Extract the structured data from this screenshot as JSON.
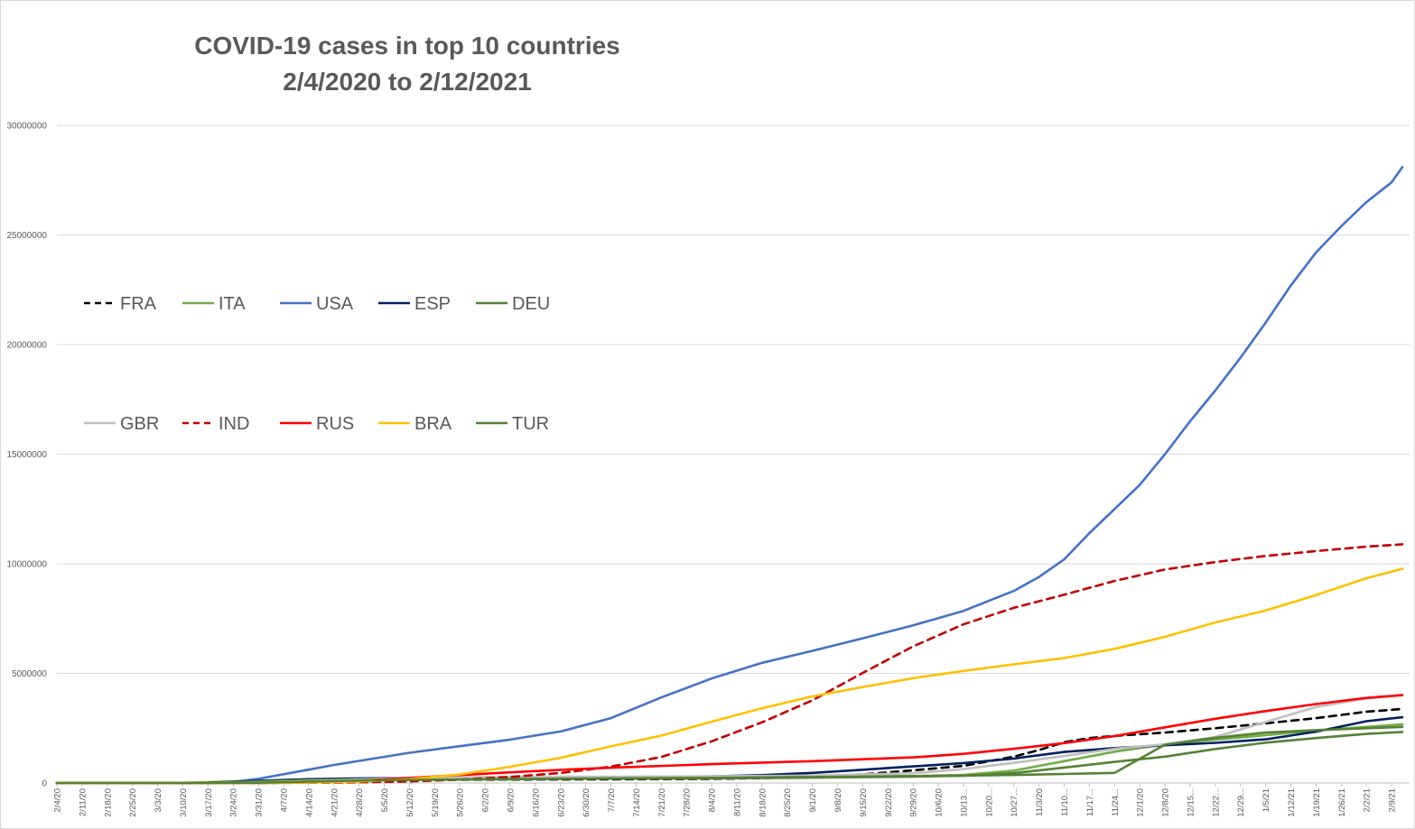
{
  "chart_data": {
    "type": "line",
    "title": "COVID-19 cases in top 10 countries",
    "subtitle": "2/4/2020 to 2/12/2021",
    "xlabel": "",
    "ylabel": "",
    "ylim": [
      0,
      30000000
    ],
    "y_ticks": [
      "0",
      "5000000",
      "10000000",
      "15000000",
      "20000000",
      "25000000",
      "30000000"
    ],
    "x_tick_labels": [
      "2/4/20",
      "2/11/20",
      "2/18/20",
      "2/25/20",
      "3/3/20",
      "3/10/20",
      "3/17/20",
      "3/24/20",
      "3/31/20",
      "4/7/20",
      "4/14/20",
      "4/21/20",
      "4/28/20",
      "5/5/20",
      "5/12/20",
      "5/19/20",
      "5/26/20",
      "6/2/20",
      "6/9/20",
      "6/16/20",
      "6/23/20",
      "6/30/20",
      "7/7/20",
      "7/14/20",
      "7/21/20",
      "7/28/20",
      "8/4/20",
      "8/11/20",
      "8/18/20",
      "8/25/20",
      "9/1/20",
      "9/8/20",
      "9/15/20",
      "9/22/20",
      "9/29/20",
      "10/6/20",
      "10/13...",
      "10/20...",
      "10/27...",
      "11/3/20",
      "11/10...",
      "11/17...",
      "11/24...",
      "12/1/20",
      "12/8/20",
      "12/15...",
      "12/22...",
      "12/29...",
      "1/5/21",
      "1/12/21",
      "1/19/21",
      "1/26/21",
      "2/2/21",
      "2/9/21"
    ],
    "x_last": "2/12/21",
    "grid": true,
    "legend_position": "left",
    "series": [
      {
        "name": "FRA",
        "color": "#000000",
        "dash": true,
        "points": [
          [
            "2/4/20",
            0
          ],
          [
            "3/3/20",
            200
          ],
          [
            "3/17/20",
            7700
          ],
          [
            "3/31/20",
            52000
          ],
          [
            "4/14/20",
            104000
          ],
          [
            "4/28/20",
            129000
          ],
          [
            "5/12/20",
            140000
          ],
          [
            "6/9/20",
            155000
          ],
          [
            "7/7/20",
            168000
          ],
          [
            "8/4/20",
            190000
          ],
          [
            "8/18/20",
            221000
          ],
          [
            "9/1/20",
            286000
          ],
          [
            "9/15/20",
            396000
          ],
          [
            "9/29/20",
            578000
          ],
          [
            "10/13/20",
            780000
          ],
          [
            "10/27/20",
            1200000
          ],
          [
            "11/3/20",
            1500000
          ],
          [
            "11/10/20",
            1860000
          ],
          [
            "11/17/20",
            2050000
          ],
          [
            "11/24/20",
            2150000
          ],
          [
            "12/8/20",
            2300000
          ],
          [
            "12/22/20",
            2500000
          ],
          [
            "1/5/21",
            2720000
          ],
          [
            "1/19/21",
            2960000
          ],
          [
            "2/2/21",
            3250000
          ],
          [
            "2/12/21",
            3380000
          ]
        ]
      },
      {
        "name": "ITA",
        "color": "#70ad47",
        "dash": false,
        "points": [
          [
            "2/4/20",
            0
          ],
          [
            "2/25/20",
            300
          ],
          [
            "3/10/20",
            10000
          ],
          [
            "3/24/20",
            69000
          ],
          [
            "4/7/20",
            135000
          ],
          [
            "4/21/20",
            183000
          ],
          [
            "5/5/20",
            213000
          ],
          [
            "6/2/20",
            233000
          ],
          [
            "7/7/20",
            242000
          ],
          [
            "8/4/20",
            248000
          ],
          [
            "9/1/20",
            270000
          ],
          [
            "9/29/20",
            314000
          ],
          [
            "10/13/20",
            365000
          ],
          [
            "10/27/20",
            565000
          ],
          [
            "11/10/20",
            996000
          ],
          [
            "11/24/20",
            1430000
          ],
          [
            "12/8/20",
            1760000
          ],
          [
            "12/22/20",
            1980000
          ],
          [
            "1/5/21",
            2180000
          ],
          [
            "1/19/21",
            2400000
          ],
          [
            "2/2/21",
            2560000
          ],
          [
            "2/12/21",
            2680000
          ]
        ]
      },
      {
        "name": "USA",
        "color": "#4472c4",
        "dash": false,
        "points": [
          [
            "2/4/20",
            0
          ],
          [
            "3/10/20",
            1000
          ],
          [
            "3/17/20",
            6400
          ],
          [
            "3/24/20",
            54000
          ],
          [
            "3/31/20",
            188000
          ],
          [
            "4/7/20",
            400000
          ],
          [
            "4/14/20",
            608000
          ],
          [
            "4/21/20",
            825000
          ],
          [
            "4/28/20",
            1010000
          ],
          [
            "5/12/20",
            1380000
          ],
          [
            "5/26/20",
            1680000
          ],
          [
            "6/9/20",
            1980000
          ],
          [
            "6/23/20",
            2350000
          ],
          [
            "7/7/20",
            2960000
          ],
          [
            "7/21/20",
            3900000
          ],
          [
            "8/4/20",
            4770000
          ],
          [
            "8/18/20",
            5480000
          ],
          [
            "9/1/20",
            6030000
          ],
          [
            "9/15/20",
            6600000
          ],
          [
            "9/29/20",
            7190000
          ],
          [
            "10/13/20",
            7850000
          ],
          [
            "10/27/20",
            8760000
          ],
          [
            "11/3/20",
            9400000
          ],
          [
            "11/10/20",
            10200000
          ],
          [
            "11/17/20",
            11400000
          ],
          [
            "11/24/20",
            12500000
          ],
          [
            "12/1/20",
            13600000
          ],
          [
            "12/8/20",
            15000000
          ],
          [
            "12/15/20",
            16500000
          ],
          [
            "12/22/20",
            17900000
          ],
          [
            "12/29/20",
            19400000
          ],
          [
            "1/5/21",
            21000000
          ],
          [
            "1/12/21",
            22700000
          ],
          [
            "1/19/21",
            24200000
          ],
          [
            "1/26/21",
            25400000
          ],
          [
            "2/2/21",
            26500000
          ],
          [
            "2/9/21",
            27400000
          ],
          [
            "2/12/21",
            28100000
          ]
        ]
      },
      {
        "name": "ESP",
        "color": "#002060",
        "dash": false,
        "points": [
          [
            "2/4/20",
            0
          ],
          [
            "3/3/20",
            170
          ],
          [
            "3/17/20",
            11700
          ],
          [
            "3/31/20",
            94000
          ],
          [
            "4/14/20",
            172000
          ],
          [
            "4/28/20",
            210000
          ],
          [
            "5/12/20",
            228000
          ],
          [
            "6/9/20",
            242000
          ],
          [
            "7/7/20",
            252000
          ],
          [
            "8/4/20",
            302000
          ],
          [
            "8/18/20",
            360000
          ],
          [
            "9/1/20",
            462000
          ],
          [
            "9/15/20",
            604000
          ],
          [
            "9/29/20",
            758000
          ],
          [
            "10/13/20",
            908000
          ],
          [
            "10/27/20",
            1116000
          ],
          [
            "11/10/20",
            1417000
          ],
          [
            "11/24/20",
            1594000
          ],
          [
            "12/8/20",
            1720000
          ],
          [
            "12/22/20",
            1830000
          ],
          [
            "1/5/21",
            1990000
          ],
          [
            "1/19/21",
            2340000
          ],
          [
            "2/2/21",
            2820000
          ],
          [
            "2/12/21",
            3000000
          ]
        ]
      },
      {
        "name": "DEU",
        "color": "#548235",
        "dash": false,
        "points": [
          [
            "2/4/20",
            12
          ],
          [
            "3/3/20",
            200
          ],
          [
            "3/17/20",
            9300
          ],
          [
            "3/31/20",
            71800
          ],
          [
            "4/14/20",
            131000
          ],
          [
            "4/28/20",
            159000
          ],
          [
            "5/12/20",
            172000
          ],
          [
            "6/9/20",
            186000
          ],
          [
            "7/7/20",
            197000
          ],
          [
            "8/4/20",
            212000
          ],
          [
            "9/1/20",
            244000
          ],
          [
            "9/29/20",
            292000
          ],
          [
            "10/13/20",
            334000
          ],
          [
            "10/27/20",
            449000
          ],
          [
            "11/10/20",
            705000
          ],
          [
            "11/24/20",
            961000
          ],
          [
            "12/8/20",
            1200000
          ],
          [
            "12/22/20",
            1550000
          ],
          [
            "1/5/21",
            1840000
          ],
          [
            "1/19/21",
            2050000
          ],
          [
            "2/2/21",
            2240000
          ],
          [
            "2/12/21",
            2330000
          ]
        ]
      },
      {
        "name": "GBR",
        "color": "#bfbfbf",
        "dash": false,
        "points": [
          [
            "2/4/20",
            2
          ],
          [
            "3/3/20",
            50
          ],
          [
            "3/17/20",
            2000
          ],
          [
            "3/31/20",
            25000
          ],
          [
            "4/14/20",
            94000
          ],
          [
            "4/28/20",
            162000
          ],
          [
            "5/12/20",
            227000
          ],
          [
            "6/9/20",
            289000
          ],
          [
            "7/7/20",
            286000
          ],
          [
            "8/4/20",
            306000
          ],
          [
            "9/1/20",
            339000
          ],
          [
            "9/29/20",
            446000
          ],
          [
            "10/13/20",
            634000
          ],
          [
            "10/27/20",
            918000
          ],
          [
            "11/10/20",
            1230000
          ],
          [
            "11/24/20",
            1560000
          ],
          [
            "12/8/20",
            1760000
          ],
          [
            "12/22/20",
            2100000
          ],
          [
            "1/5/21",
            2780000
          ],
          [
            "1/19/21",
            3470000
          ],
          [
            "2/2/21",
            3860000
          ],
          [
            "2/12/21",
            4010000
          ]
        ]
      },
      {
        "name": "IND",
        "color": "#c00000",
        "dash": true,
        "points": [
          [
            "2/4/20",
            3
          ],
          [
            "3/3/20",
            5
          ],
          [
            "3/17/20",
            140
          ],
          [
            "3/31/20",
            1400
          ],
          [
            "4/14/20",
            11000
          ],
          [
            "4/28/20",
            31000
          ],
          [
            "5/12/20",
            74000
          ],
          [
            "5/26/20",
            151000
          ],
          [
            "6/9/20",
            276000
          ],
          [
            "6/23/20",
            456000
          ],
          [
            "7/7/20",
            743000
          ],
          [
            "7/21/20",
            1190000
          ],
          [
            "8/4/20",
            1900000
          ],
          [
            "8/18/20",
            2770000
          ],
          [
            "9/1/20",
            3770000
          ],
          [
            "9/15/20",
            5020000
          ],
          [
            "9/29/20",
            6230000
          ],
          [
            "10/13/20",
            7240000
          ],
          [
            "10/27/20",
            7990000
          ],
          [
            "11/10/20",
            8590000
          ],
          [
            "11/24/20",
            9220000
          ],
          [
            "12/8/20",
            9740000
          ],
          [
            "12/22/20",
            10080000
          ],
          [
            "1/5/21",
            10360000
          ],
          [
            "1/19/21",
            10580000
          ],
          [
            "2/2/21",
            10780000
          ],
          [
            "2/12/21",
            10890000
          ]
        ]
      },
      {
        "name": "RUS",
        "color": "#ff0000",
        "dash": false,
        "points": [
          [
            "2/4/20",
            2
          ],
          [
            "3/3/20",
            3
          ],
          [
            "3/17/20",
            114
          ],
          [
            "3/31/20",
            2300
          ],
          [
            "4/14/20",
            21000
          ],
          [
            "4/28/20",
            93000
          ],
          [
            "5/12/20",
            232000
          ],
          [
            "5/26/20",
            362000
          ],
          [
            "6/9/20",
            485000
          ],
          [
            "6/23/20",
            599000
          ],
          [
            "7/7/20",
            694000
          ],
          [
            "8/4/20",
            861000
          ],
          [
            "9/1/20",
            997000
          ],
          [
            "9/29/20",
            1170000
          ],
          [
            "10/13/20",
            1330000
          ],
          [
            "10/27/20",
            1560000
          ],
          [
            "11/10/20",
            1820000
          ],
          [
            "11/24/20",
            2140000
          ],
          [
            "12/8/20",
            2540000
          ],
          [
            "12/22/20",
            2930000
          ],
          [
            "1/5/21",
            3280000
          ],
          [
            "1/19/21",
            3600000
          ],
          [
            "2/2/21",
            3880000
          ],
          [
            "2/12/21",
            4010000
          ]
        ]
      },
      {
        "name": "BRA",
        "color": "#ffc000",
        "dash": false,
        "points": [
          [
            "2/4/20",
            0
          ],
          [
            "3/3/20",
            2
          ],
          [
            "3/17/20",
            290
          ],
          [
            "3/31/20",
            5700
          ],
          [
            "4/14/20",
            25000
          ],
          [
            "4/28/20",
            72000
          ],
          [
            "5/12/20",
            178000
          ],
          [
            "5/26/20",
            392000
          ],
          [
            "6/9/20",
            740000
          ],
          [
            "6/23/20",
            1150000
          ],
          [
            "7/7/20",
            1670000
          ],
          [
            "7/21/20",
            2160000
          ],
          [
            "8/4/20",
            2800000
          ],
          [
            "8/18/20",
            3410000
          ],
          [
            "9/1/20",
            3950000
          ],
          [
            "9/15/20",
            4380000
          ],
          [
            "9/29/20",
            4780000
          ],
          [
            "10/13/20",
            5110000
          ],
          [
            "10/27/20",
            5410000
          ],
          [
            "11/10/20",
            5700000
          ],
          [
            "11/24/20",
            6120000
          ],
          [
            "12/8/20",
            6670000
          ],
          [
            "12/22/20",
            7320000
          ],
          [
            "1/5/21",
            7870000
          ],
          [
            "1/19/21",
            8570000
          ],
          [
            "2/2/21",
            9340000
          ],
          [
            "2/12/21",
            9770000
          ]
        ]
      },
      {
        "name": "TUR",
        "color": "#548235",
        "dash": false,
        "points": [
          [
            "2/4/20",
            0
          ],
          [
            "3/10/20",
            0
          ],
          [
            "3/17/20",
            47
          ],
          [
            "3/31/20",
            13500
          ],
          [
            "4/14/20",
            65000
          ],
          [
            "4/28/20",
            115000
          ],
          [
            "5/12/20",
            141000
          ],
          [
            "6/9/20",
            172000
          ],
          [
            "7/7/20",
            208000
          ],
          [
            "8/4/20",
            236000
          ],
          [
            "9/1/20",
            273000
          ],
          [
            "9/29/20",
            316000
          ],
          [
            "10/13/20",
            337000
          ],
          [
            "10/27/20",
            367000
          ],
          [
            "11/10/20",
            410000
          ],
          [
            "11/24/20",
            460000
          ],
          [
            "12/8/20",
            1750000
          ],
          [
            "12/22/20",
            2060000
          ],
          [
            "1/5/21",
            2300000
          ],
          [
            "1/19/21",
            2410000
          ],
          [
            "2/2/21",
            2500000
          ],
          [
            "2/12/21",
            2560000
          ]
        ]
      }
    ]
  }
}
